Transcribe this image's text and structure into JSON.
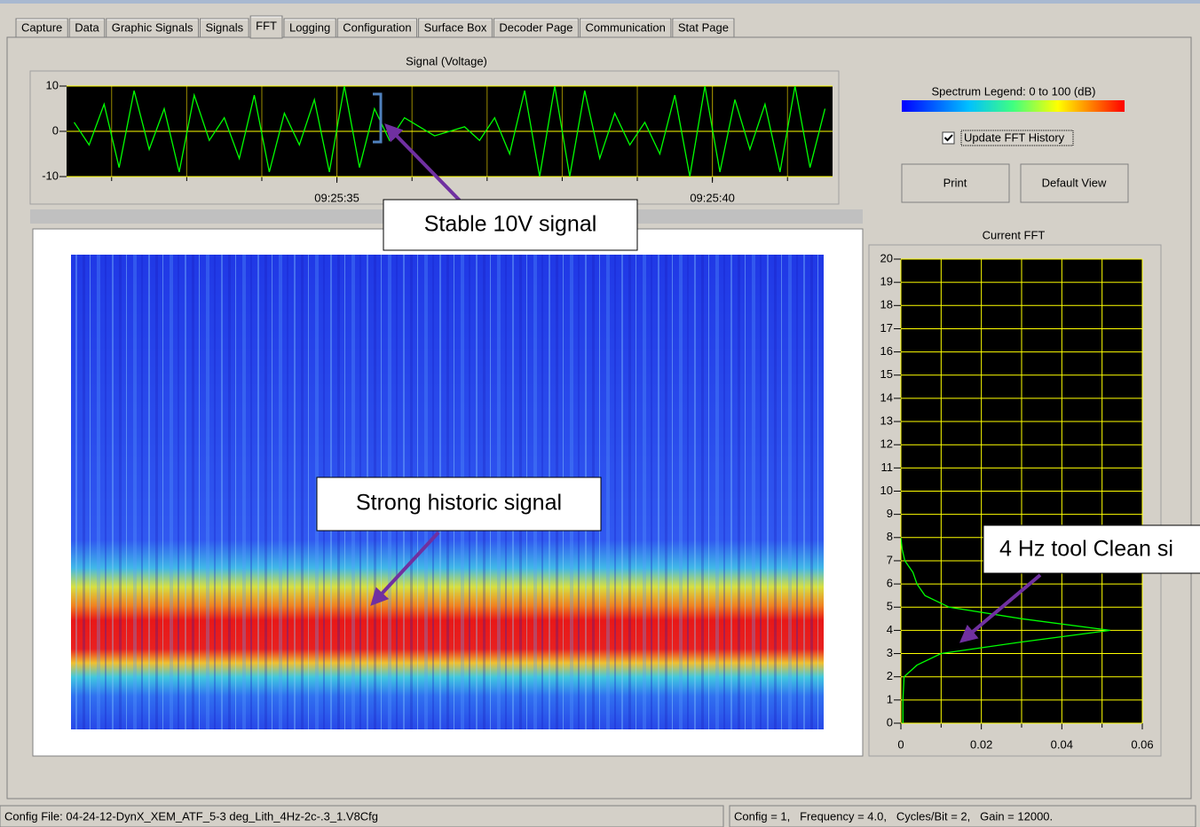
{
  "tabs": [
    "Capture",
    "Data",
    "Graphic Signals",
    "Signals",
    "FFT",
    "Logging",
    "Configuration",
    "Surface Box",
    "Decoder Page",
    "Communication",
    "Stat Page"
  ],
  "active_tab": 4,
  "chart_data": [
    {
      "type": "line",
      "title": "Signal (Voltage)",
      "color": "#00ff00",
      "x": [
        31.5,
        31.7,
        31.9,
        32.1,
        32.3,
        32.5,
        32.7,
        32.9,
        33.1,
        33.3,
        33.5,
        33.7,
        33.9,
        34.1,
        34.3,
        34.5,
        34.7,
        34.9,
        35.1,
        35.3,
        35.5,
        35.7,
        35.9,
        36.1,
        36.3,
        36.5,
        36.7,
        36.9,
        37.1,
        37.3,
        37.5,
        37.7,
        37.9,
        38.1,
        38.3,
        38.5,
        38.7,
        38.9,
        39.1,
        39.3,
        39.5,
        39.7,
        39.9,
        40.1,
        40.3,
        40.5,
        40.7,
        40.9,
        41.1,
        41.3,
        41.5
      ],
      "values": [
        2,
        -3,
        6,
        -8,
        9,
        -4,
        5,
        -9,
        8,
        -2,
        3,
        -6,
        8,
        -9,
        4,
        -3,
        7,
        -9,
        10,
        -8,
        5,
        -2,
        3,
        1,
        -1,
        0,
        1,
        -2,
        3,
        -5,
        9,
        -10,
        10,
        -10,
        9,
        -6,
        4,
        -3,
        2,
        -5,
        8,
        -10,
        10,
        -9,
        7,
        -4,
        6,
        -9,
        10,
        -8,
        5
      ],
      "xlim": [
        31.4,
        41.6
      ],
      "ylim": [
        -10,
        10
      ],
      "yticks": [
        -10,
        0,
        10
      ],
      "xticks": [
        {
          "value": 35,
          "label": "09:25:35"
        },
        {
          "value": 40,
          "label": "09:25:40"
        }
      ],
      "x_minor_ticks": [
        32,
        33,
        34,
        35,
        36,
        37,
        38,
        39,
        40,
        41
      ],
      "grid": true,
      "grid_color": "#9a8a00"
    },
    {
      "type": "line",
      "orientation": "horizontal",
      "title": "Current FFT",
      "color": "#00ff00",
      "y": [
        0,
        1,
        2,
        2.5,
        3,
        3.5,
        4,
        4.5,
        5,
        5.5,
        6,
        6.5,
        7,
        7.5,
        8
      ],
      "values": [
        0.0005,
        0.0005,
        0.0008,
        0.004,
        0.01,
        0.03,
        0.052,
        0.03,
        0.012,
        0.006,
        0.004,
        0.003,
        0.001,
        0.0003,
        0
      ],
      "xlim": [
        0,
        0.06
      ],
      "xticks": [
        0,
        0.02,
        0.04,
        0.06
      ],
      "x_minor_ticks": [
        0.01,
        0.03,
        0.05
      ],
      "ylim": [
        0,
        20
      ],
      "yticks": [
        0,
        1,
        2,
        3,
        4,
        5,
        6,
        7,
        8,
        9,
        10,
        11,
        12,
        13,
        14,
        15,
        16,
        17,
        18,
        19,
        20
      ],
      "grid": true,
      "grid_color": "#ffff00"
    }
  ],
  "spectrum_legend": "Spectrum Legend: 0 to 100 (dB)",
  "update_fft_history": {
    "label": "Update FFT History",
    "checked": true
  },
  "buttons": [
    "Print",
    "Default View"
  ],
  "annotations": [
    "Stable 10V signal",
    "Strong historic signal",
    "4 Hz tool Clean si"
  ],
  "status_bar": {
    "config_file": "Config File: 04-24-12-DynX_XEM_ATF_5-3 deg_Lith_4Hz-2c-.3_1.V8Cfg",
    "config": "Config = 1,   Frequency = 4.0,   Cycles/Bit = 2,   Gain = 12000."
  }
}
